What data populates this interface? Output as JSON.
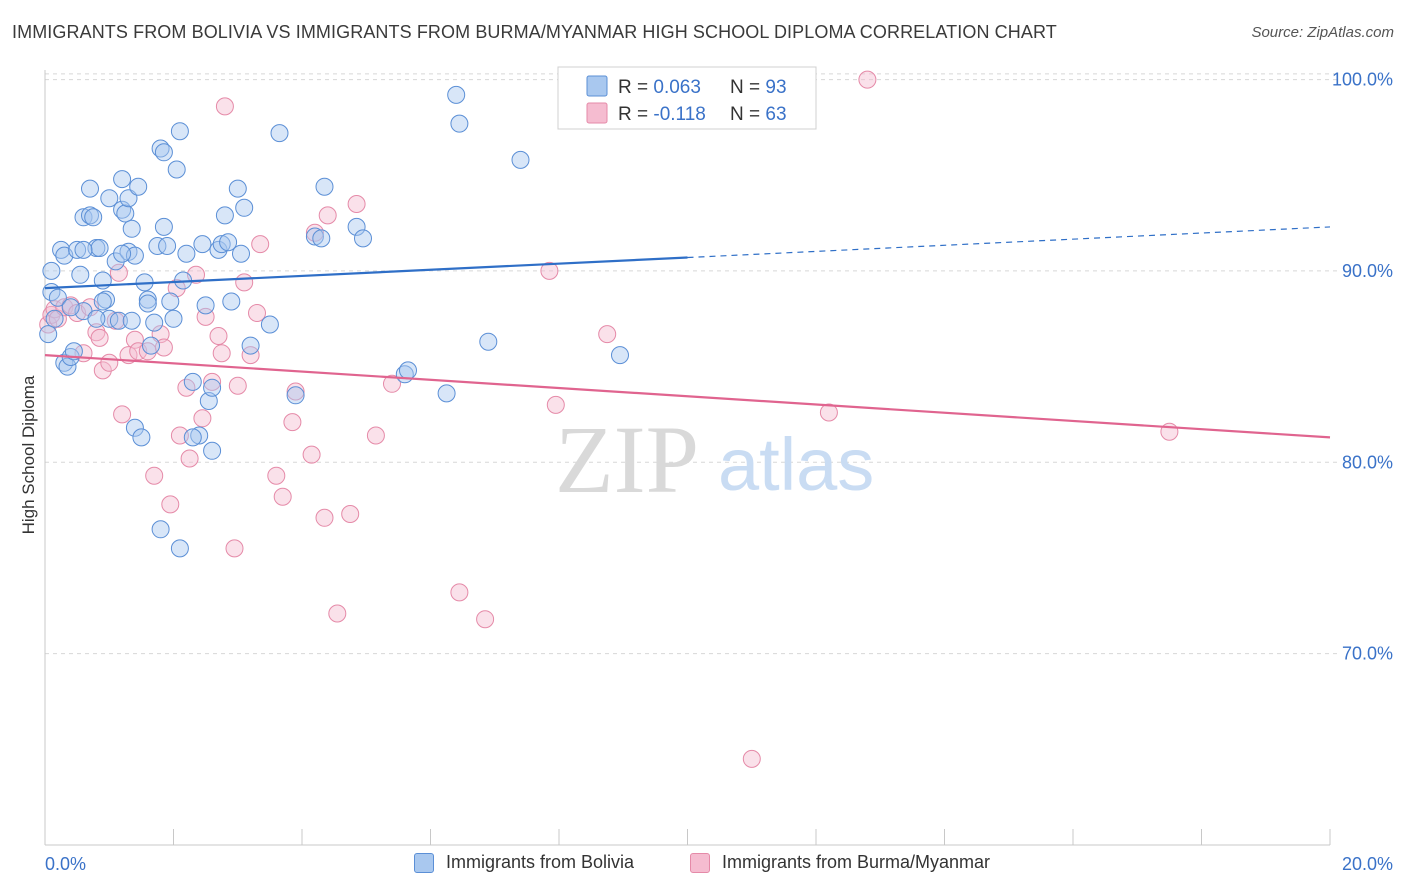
{
  "title": "IMMIGRANTS FROM BOLIVIA VS IMMIGRANTS FROM BURMA/MYANMAR HIGH SCHOOL DIPLOMA CORRELATION CHART",
  "source": "Source: ZipAtlas.com",
  "watermark": {
    "zip": "ZIP",
    "atlas": "atlas"
  },
  "colors": {
    "blue_fill": "#a9c8ef",
    "blue_stroke": "#5b8fd6",
    "blue_line": "#2f6fc7",
    "pink_fill": "#f5bcd0",
    "pink_stroke": "#e58aa8",
    "pink_line": "#e0648f",
    "value_text": "#3a72c8",
    "grid": "#d7d7d7"
  },
  "chart_data": {
    "type": "scatter",
    "xlabel": "",
    "ylabel": "High School Diploma",
    "xlim": [
      0,
      20
    ],
    "ylim": [
      60.0,
      100.5
    ],
    "x_tick_labels": [
      "0.0%",
      "20.0%"
    ],
    "y_ticks": [
      70,
      80,
      90,
      100
    ],
    "y_tick_labels": [
      "70.0%",
      "80.0%",
      "90.0%",
      "100.0%"
    ],
    "grid": true,
    "legend_top": [
      {
        "label_r": "R = ",
        "r": "0.063",
        "label_n": "N = ",
        "n": "93"
      },
      {
        "label_r": "R = ",
        "r": "-0.118",
        "label_n": "N = ",
        "n": "63"
      }
    ],
    "series": [
      {
        "name": "Immigrants from Bolivia",
        "color": "blue",
        "trend": {
          "x0": 0,
          "y0": 89.1,
          "x1": 10,
          "y1": 90.7,
          "dash_to_x": 20,
          "dash_to_y": 92.3
        },
        "points": [
          [
            0.1,
            90.0
          ],
          [
            0.1,
            88.9
          ],
          [
            0.2,
            88.6
          ],
          [
            0.15,
            87.5
          ],
          [
            0.05,
            86.7
          ],
          [
            0.3,
            85.2
          ],
          [
            0.35,
            85.0
          ],
          [
            0.4,
            85.5
          ],
          [
            0.45,
            85.8
          ],
          [
            0.25,
            91.1
          ],
          [
            0.3,
            90.8
          ],
          [
            0.5,
            91.1
          ],
          [
            0.55,
            89.8
          ],
          [
            0.6,
            87.9
          ],
          [
            0.6,
            92.8
          ],
          [
            0.7,
            94.3
          ],
          [
            0.7,
            92.9
          ],
          [
            0.75,
            92.8
          ],
          [
            0.8,
            91.2
          ],
          [
            0.85,
            91.2
          ],
          [
            0.9,
            89.5
          ],
          [
            0.95,
            88.5
          ],
          [
            1.0,
            87.5
          ],
          [
            1.0,
            93.8
          ],
          [
            1.1,
            90.5
          ],
          [
            1.15,
            87.4
          ],
          [
            1.2,
            93.2
          ],
          [
            1.2,
            94.8
          ],
          [
            1.25,
            93.0
          ],
          [
            1.3,
            93.8
          ],
          [
            1.3,
            91.0
          ],
          [
            1.35,
            92.2
          ],
          [
            1.35,
            87.4
          ],
          [
            1.4,
            90.8
          ],
          [
            1.4,
            81.8
          ],
          [
            1.45,
            94.4
          ],
          [
            1.5,
            81.3
          ],
          [
            1.55,
            89.4
          ],
          [
            1.6,
            88.5
          ],
          [
            1.65,
            86.1
          ],
          [
            1.7,
            87.3
          ],
          [
            1.75,
            91.3
          ],
          [
            1.8,
            96.4
          ],
          [
            1.85,
            92.3
          ],
          [
            1.85,
            96.2
          ],
          [
            1.9,
            91.3
          ],
          [
            1.95,
            88.4
          ],
          [
            2.0,
            87.5
          ],
          [
            2.05,
            95.3
          ],
          [
            2.1,
            97.3
          ],
          [
            2.15,
            89.5
          ],
          [
            2.2,
            90.9
          ],
          [
            2.3,
            84.2
          ],
          [
            2.4,
            81.4
          ],
          [
            2.45,
            91.4
          ],
          [
            2.5,
            88.2
          ],
          [
            2.55,
            83.2
          ],
          [
            2.6,
            83.9
          ],
          [
            2.7,
            91.1
          ],
          [
            2.75,
            91.4
          ],
          [
            2.8,
            92.9
          ],
          [
            2.85,
            91.5
          ],
          [
            2.9,
            88.4
          ],
          [
            3.0,
            94.3
          ],
          [
            3.05,
            90.9
          ],
          [
            3.1,
            93.3
          ],
          [
            3.2,
            86.1
          ],
          [
            3.5,
            87.2
          ],
          [
            3.65,
            97.2
          ],
          [
            3.9,
            83.5
          ],
          [
            4.2,
            91.8
          ],
          [
            4.3,
            91.7
          ],
          [
            4.35,
            94.4
          ],
          [
            4.85,
            92.3
          ],
          [
            4.95,
            91.7
          ],
          [
            5.6,
            84.6
          ],
          [
            5.65,
            84.8
          ],
          [
            6.25,
            83.6
          ],
          [
            6.4,
            99.2
          ],
          [
            6.45,
            97.7
          ],
          [
            6.9,
            86.3
          ],
          [
            7.4,
            95.8
          ],
          [
            8.95,
            85.6
          ],
          [
            1.8,
            76.5
          ],
          [
            2.1,
            75.5
          ],
          [
            2.6,
            80.6
          ],
          [
            0.9,
            88.4
          ],
          [
            1.6,
            88.3
          ],
          [
            1.2,
            90.9
          ],
          [
            0.4,
            88.1
          ],
          [
            0.6,
            91.1
          ],
          [
            2.3,
            81.3
          ],
          [
            0.8,
            87.5
          ]
        ]
      },
      {
        "name": "Immigrants from Burma/Myanmar",
        "color": "pink",
        "trend": {
          "x0": 0,
          "y0": 85.6,
          "x1": 20,
          "y1": 81.3
        },
        "points": [
          [
            0.05,
            87.2
          ],
          [
            0.1,
            87.7
          ],
          [
            0.15,
            88.0
          ],
          [
            0.2,
            87.5
          ],
          [
            0.3,
            88.1
          ],
          [
            0.4,
            88.2
          ],
          [
            0.5,
            87.8
          ],
          [
            0.6,
            85.7
          ],
          [
            0.7,
            88.1
          ],
          [
            0.8,
            86.8
          ],
          [
            0.85,
            86.5
          ],
          [
            0.9,
            84.8
          ],
          [
            1.0,
            85.2
          ],
          [
            1.1,
            87.4
          ],
          [
            1.15,
            89.9
          ],
          [
            1.2,
            82.5
          ],
          [
            1.3,
            85.6
          ],
          [
            1.4,
            86.4
          ],
          [
            1.45,
            85.8
          ],
          [
            1.6,
            85.8
          ],
          [
            1.7,
            79.3
          ],
          [
            1.8,
            86.7
          ],
          [
            1.85,
            86.0
          ],
          [
            1.95,
            77.8
          ],
          [
            2.05,
            89.1
          ],
          [
            2.1,
            81.4
          ],
          [
            2.2,
            83.9
          ],
          [
            2.25,
            80.2
          ],
          [
            2.35,
            89.8
          ],
          [
            2.45,
            82.3
          ],
          [
            2.5,
            87.6
          ],
          [
            2.6,
            84.2
          ],
          [
            2.7,
            86.6
          ],
          [
            2.75,
            85.7
          ],
          [
            2.8,
            98.6
          ],
          [
            2.95,
            75.5
          ],
          [
            3.0,
            84.0
          ],
          [
            3.1,
            89.4
          ],
          [
            3.2,
            85.6
          ],
          [
            3.3,
            87.8
          ],
          [
            3.35,
            91.4
          ],
          [
            3.6,
            79.3
          ],
          [
            3.7,
            78.2
          ],
          [
            3.85,
            82.1
          ],
          [
            3.9,
            83.7
          ],
          [
            4.15,
            80.4
          ],
          [
            4.35,
            77.1
          ],
          [
            4.4,
            92.9
          ],
          [
            4.55,
            72.1
          ],
          [
            4.75,
            77.3
          ],
          [
            4.85,
            93.5
          ],
          [
            5.15,
            81.4
          ],
          [
            5.4,
            84.1
          ],
          [
            6.45,
            73.2
          ],
          [
            6.85,
            71.8
          ],
          [
            7.85,
            90.0
          ],
          [
            7.95,
            83.0
          ],
          [
            8.75,
            86.7
          ],
          [
            12.2,
            82.6
          ],
          [
            12.8,
            100.0
          ],
          [
            17.5,
            81.6
          ],
          [
            11.0,
            64.5
          ],
          [
            4.2,
            92.0
          ]
        ]
      }
    ]
  }
}
